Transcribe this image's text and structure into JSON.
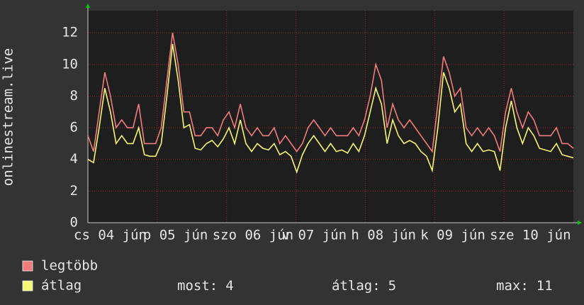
{
  "chart_data": {
    "type": "line",
    "y_label": "onlinestream.live",
    "x_labels": [
      "cs 04 jún",
      "p 05 jún",
      "szo 06 jún",
      "v 07 jún",
      "h 08 jún",
      "k 09 jún",
      "sze 10 jún"
    ],
    "ylim": [
      0,
      13.4
    ],
    "yticks": [
      0,
      2,
      4,
      6,
      8,
      10,
      12
    ],
    "grid": true,
    "series": [
      {
        "name": "legtöbb",
        "color": "#f07c7c",
        "values": [
          5.5,
          4.5,
          7,
          9.5,
          8,
          6,
          6.5,
          6,
          6,
          7.5,
          5,
          5,
          5,
          6,
          9,
          12,
          10,
          7,
          7,
          5.5,
          5.5,
          6,
          6,
          5.5,
          6.5,
          7,
          6,
          7.5,
          6,
          5.5,
          6,
          5.5,
          5.5,
          6,
          5,
          5.5,
          5,
          4.5,
          5,
          6,
          6.5,
          6,
          5.5,
          6,
          5.5,
          5.5,
          5.5,
          6,
          5.5,
          6.5,
          8,
          10,
          9,
          6,
          7.5,
          6.5,
          6,
          6.5,
          6,
          5.5,
          5,
          4.5,
          7.5,
          10.5,
          9.5,
          8,
          8.5,
          6,
          5.5,
          6,
          5.5,
          6,
          5.5,
          4.5,
          7,
          8.5,
          7,
          6,
          7,
          6.5,
          5.5,
          5.5,
          5.5,
          6,
          5,
          5,
          4.7
        ]
      },
      {
        "name": "átlag",
        "color": "#f5f576",
        "values": [
          4,
          3.8,
          6,
          8.5,
          7,
          5,
          5.5,
          5,
          5,
          6,
          4.3,
          4.2,
          4.2,
          5,
          8,
          11.3,
          9,
          6,
          6.2,
          4.7,
          4.6,
          5,
          5.2,
          4.8,
          5.3,
          6,
          5,
          6.5,
          5,
          4.5,
          5,
          4.7,
          4.6,
          5,
          4.3,
          4.5,
          4.2,
          3.2,
          4.3,
          5,
          5.5,
          5,
          4.5,
          5,
          4.5,
          4.6,
          4.4,
          5,
          4.5,
          5.5,
          7,
          8.5,
          7.5,
          5,
          6.5,
          5.5,
          5,
          5.2,
          5,
          4.5,
          4.2,
          3.3,
          6,
          9.5,
          8.5,
          7,
          7.5,
          5,
          4.5,
          5,
          4.5,
          4.6,
          4.5,
          3.3,
          6,
          7.7,
          6,
          5,
          6,
          5.5,
          4.7,
          4.6,
          4.5,
          5,
          4.3,
          4.2,
          4.1
        ]
      }
    ],
    "stats": [
      {
        "label": "most:",
        "value": 4
      },
      {
        "label": "átlag:",
        "value": 5
      },
      {
        "label": "max:",
        "value": 11
      }
    ]
  }
}
